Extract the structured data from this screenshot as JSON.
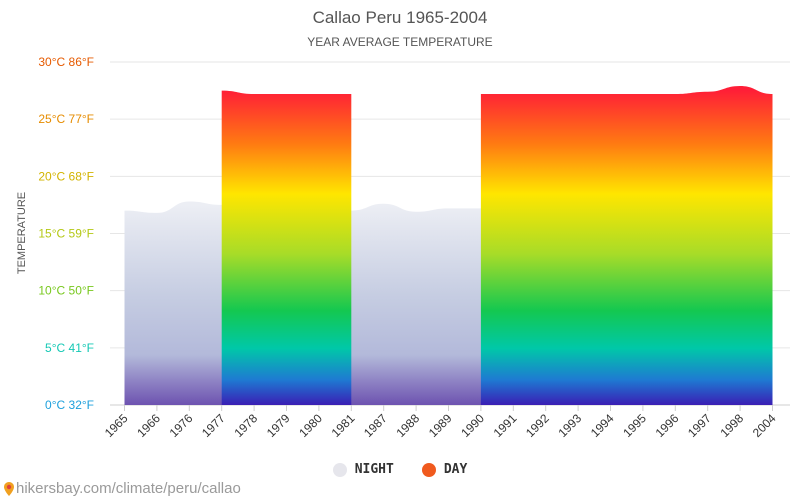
{
  "title": "Callao Peru 1965-2004",
  "subtitle": "YEAR AVERAGE TEMPERATURE",
  "footer": {
    "text": "hikersbay.com/climate/peru/callao"
  },
  "legend": [
    {
      "label": "NIGHT",
      "color": "#e6e6ec"
    },
    {
      "label": "DAY",
      "color": "#f05a1e"
    }
  ],
  "chart_data": {
    "type": "area",
    "title": "Callao Peru 1965-2004",
    "subtitle": "YEAR AVERAGE TEMPERATURE",
    "ylabel": "TEMPERATURE",
    "ylim": [
      0,
      30
    ],
    "yticks": [
      {
        "value": 0,
        "label": "0°C 32°F",
        "color": "#1ea0dc"
      },
      {
        "value": 5,
        "label": "5°C 41°F",
        "color": "#14c8b4"
      },
      {
        "value": 10,
        "label": "10°C 50°F",
        "color": "#78c81e"
      },
      {
        "value": 15,
        "label": "15°C 59°F",
        "color": "#b4c814"
      },
      {
        "value": 20,
        "label": "20°C 68°F",
        "color": "#d2b400"
      },
      {
        "value": 25,
        "label": "25°C 77°F",
        "color": "#e68c00"
      },
      {
        "value": 30,
        "label": "30°C 86°F",
        "color": "#e65a00"
      }
    ],
    "categories": [
      "1965",
      "1966",
      "1976",
      "1977",
      "1978",
      "1979",
      "1980",
      "1981",
      "1987",
      "1988",
      "1989",
      "1990",
      "1991",
      "1992",
      "1993",
      "1994",
      "1995",
      "1996",
      "1997",
      "1998",
      "2004"
    ],
    "series": [
      {
        "name": "NIGHT",
        "values": [
          17.0,
          16.8,
          17.8,
          17.5,
          16.9,
          17.6,
          17.6,
          17.0,
          17.6,
          16.9,
          17.2,
          17.2,
          17.4,
          17.8,
          17.8,
          17.4,
          17.4,
          17.6,
          17.8,
          17.5,
          17.7
        ]
      },
      {
        "name": "DAY",
        "values": [
          null,
          null,
          null,
          27.5,
          27.2,
          27.2,
          27.2,
          27.2,
          null,
          null,
          null,
          27.2,
          27.2,
          27.2,
          27.2,
          27.2,
          27.2,
          27.2,
          27.4,
          27.9,
          27.2
        ]
      }
    ],
    "grid": true,
    "legend_position": "bottom"
  }
}
